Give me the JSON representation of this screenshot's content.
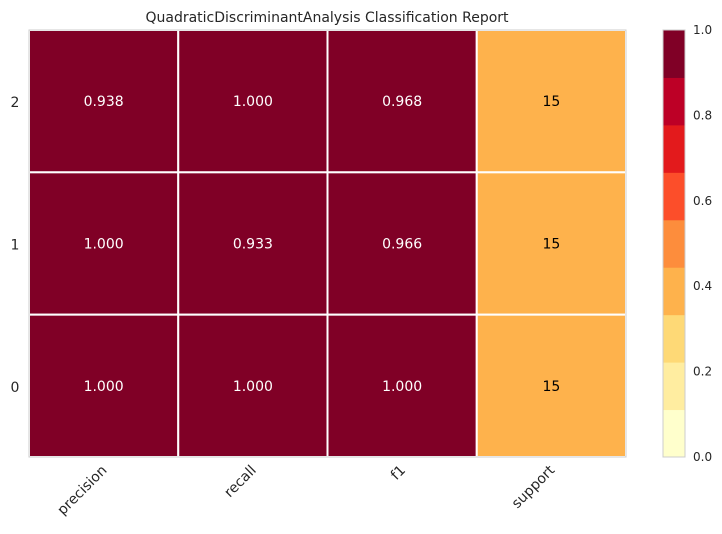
{
  "chart_data": {
    "type": "heatmap",
    "title": "QuadraticDiscriminantAnalysis Classification Report",
    "columns": [
      "precision",
      "recall",
      "f1",
      "support"
    ],
    "rows": [
      "2",
      "1",
      "0"
    ],
    "values": [
      [
        0.938,
        1.0,
        0.968,
        15
      ],
      [
        1.0,
        0.933,
        0.966,
        15
      ],
      [
        1.0,
        1.0,
        1.0,
        15
      ]
    ],
    "cell_labels": [
      [
        "0.938",
        "1.000",
        "0.968",
        "15"
      ],
      [
        "1.000",
        "0.933",
        "0.966",
        "15"
      ],
      [
        "1.000",
        "1.000",
        "1.000",
        "15"
      ]
    ],
    "color_fraction": [
      [
        0.938,
        1.0,
        0.968,
        0.375
      ],
      [
        1.0,
        0.933,
        0.966,
        0.375
      ],
      [
        1.0,
        1.0,
        1.0,
        0.375
      ]
    ],
    "colorbar": {
      "range": [
        0.0,
        1.0
      ],
      "ticks": [
        "0.0",
        "0.2",
        "0.4",
        "0.6",
        "0.8",
        "1.0"
      ],
      "colors": [
        "#ffffcc",
        "#ffeda0",
        "#fed976",
        "#feb24c",
        "#fd8d3c",
        "#fc4e2a",
        "#e31a1c",
        "#bd0026",
        "#800026"
      ]
    }
  }
}
